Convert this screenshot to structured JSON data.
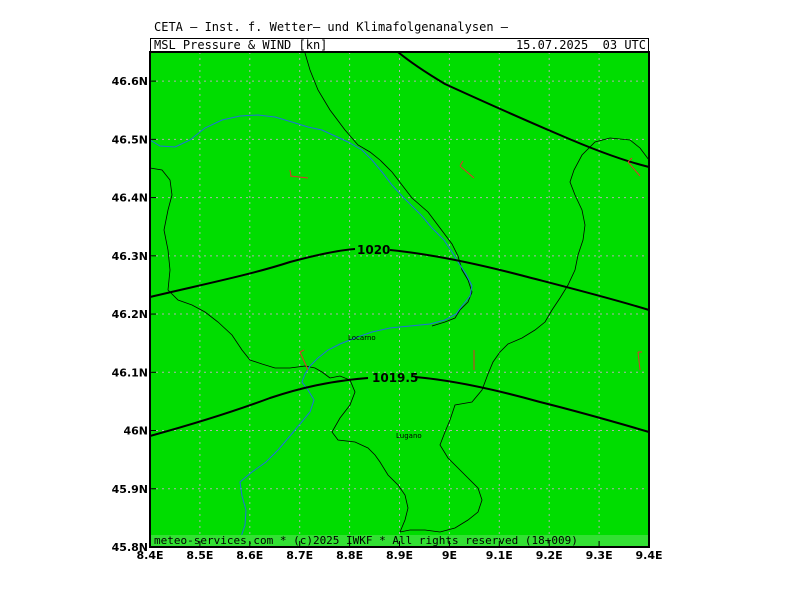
{
  "header": {
    "top_title": "CETA — Inst. f. Wetter— und Klimafolgenanalysen —",
    "product": "MSL_Pressure_&_WIND_[kn]",
    "valid_time": "15.07.2025  03 UTC"
  },
  "map": {
    "lon_range": [
      8.4,
      9.4
    ],
    "lat_range": [
      45.8,
      46.65
    ],
    "background_color": "#00dd00",
    "lon_ticks": [
      "8.4E",
      "8.5E",
      "8.6E",
      "8.7E",
      "8.8E",
      "8.9E",
      "9E",
      "9.1E",
      "9.2E",
      "9.3E",
      "9.4E"
    ],
    "lat_ticks": [
      "45.8N",
      "45.9N",
      "46N",
      "46.1N",
      "46.2N",
      "46.3N",
      "46.4N",
      "46.5N",
      "46.6N"
    ],
    "grid": true,
    "isobars": [
      {
        "label": "1020",
        "value": 1020
      },
      {
        "label": "1019.5",
        "value": 1019.5
      }
    ],
    "cities": [
      {
        "name": "Locarno",
        "lon": 8.795,
        "lat": 46.163
      },
      {
        "name": "Lugano",
        "lon": 8.952,
        "lat": 45.988
      }
    ],
    "footer": "meteo-services.com * (c)2025 IWKF * All rights reserved (18+009)"
  }
}
